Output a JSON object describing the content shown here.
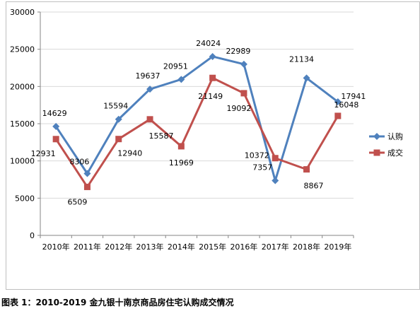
{
  "caption": "图表 1：2010-2019 金九银十南京商品房住宅认购成交情况",
  "colors": {
    "series_1": "#4f81bd",
    "series_2": "#c0504d",
    "grid": "#d9d9d9",
    "axis": "#868686"
  },
  "chart_data": {
    "type": "line",
    "title": "",
    "xlabel": "",
    "ylabel": "",
    "categories": [
      "2010年",
      "2011年",
      "2012年",
      "2013年",
      "2014年",
      "2015年",
      "2016年",
      "2017年",
      "2018年",
      "2019年"
    ],
    "ylim": [
      0,
      30000
    ],
    "yticks": [
      "0",
      "5000",
      "10000",
      "15000",
      "20000",
      "25000",
      "30000"
    ],
    "grid": true,
    "legend": "right",
    "series": [
      {
        "name": "认购",
        "marker": "diamond",
        "color": "#4f81bd",
        "values": [
          14629,
          8306,
          15594,
          19637,
          20951,
          24024,
          22989,
          7357,
          21134,
          17941
        ],
        "labels": [
          "14629",
          "8306",
          "15594",
          "19637",
          "20951",
          "24024",
          "22989",
          "7357",
          "21134",
          "17941"
        ]
      },
      {
        "name": "成交",
        "marker": "square",
        "color": "#c0504d",
        "values": [
          12931,
          6509,
          12940,
          15587,
          11969,
          21149,
          19092,
          10372,
          8867,
          16048
        ],
        "labels": [
          "12931",
          "6509",
          "12940",
          "15587",
          "11969",
          "21149",
          "19092",
          "10372",
          "8867",
          "16048"
        ]
      }
    ]
  }
}
